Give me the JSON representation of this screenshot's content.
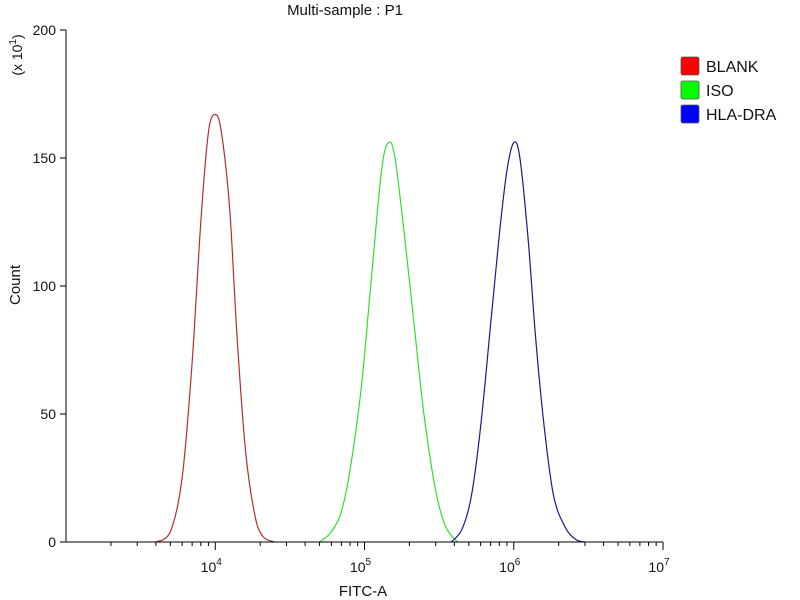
{
  "chart_data": {
    "type": "line",
    "title": "Multi-sample : P1",
    "xlabel": "FITC-A",
    "ylabel": "Count",
    "y_multiplier_prefix": "(x 10",
    "y_multiplier_exp": "1",
    "y_multiplier_suffix": ")",
    "x_scale": "log",
    "xlim": [
      1000,
      10000000
    ],
    "ylim": [
      0,
      200
    ],
    "x_ticks": [
      {
        "base": "10",
        "exp": "4",
        "value": 10000
      },
      {
        "base": "10",
        "exp": "5",
        "value": 100000
      },
      {
        "base": "10",
        "exp": "6",
        "value": 1000000
      },
      {
        "base": "10",
        "exp": "7",
        "value": 10000000
      }
    ],
    "y_ticks": [
      {
        "label": "0",
        "value": 0
      },
      {
        "label": "50",
        "value": 50
      },
      {
        "label": "100",
        "value": 100
      },
      {
        "label": "150",
        "value": 150
      },
      {
        "label": "200",
        "value": 200
      }
    ],
    "legend_position": "right",
    "series": [
      {
        "name": "BLANK",
        "color": "#b03030",
        "legend_color": "#ff0000",
        "x": [
          4000,
          5000,
          6000,
          7000,
          8000,
          9000,
          10000,
          11000,
          12500,
          14000,
          16000,
          18500,
          21000,
          25000
        ],
        "y": [
          0,
          4,
          25,
          70,
          125,
          160,
          167,
          160,
          130,
          80,
          35,
          10,
          2,
          0
        ]
      },
      {
        "name": "ISO",
        "color": "#33dd33",
        "legend_color": "#00ff00",
        "x": [
          50000,
          60000,
          70000,
          80000,
          95000,
          110000,
          130000,
          145000,
          160000,
          185000,
          215000,
          250000,
          300000,
          350000,
          420000
        ],
        "y": [
          0,
          4,
          12,
          28,
          60,
          100,
          145,
          156,
          150,
          120,
          85,
          50,
          20,
          6,
          0
        ]
      },
      {
        "name": "HLA-DRA",
        "color": "#1a1a88",
        "legend_color": "#0000ff",
        "x": [
          380000,
          450000,
          520000,
          600000,
          700000,
          800000,
          900000,
          1000000,
          1100000,
          1250000,
          1400000,
          1600000,
          1850000,
          2200000,
          2600000,
          3000000
        ],
        "y": [
          0,
          5,
          18,
          45,
          85,
          120,
          145,
          156,
          150,
          118,
          80,
          45,
          18,
          6,
          1,
          0
        ]
      }
    ]
  }
}
